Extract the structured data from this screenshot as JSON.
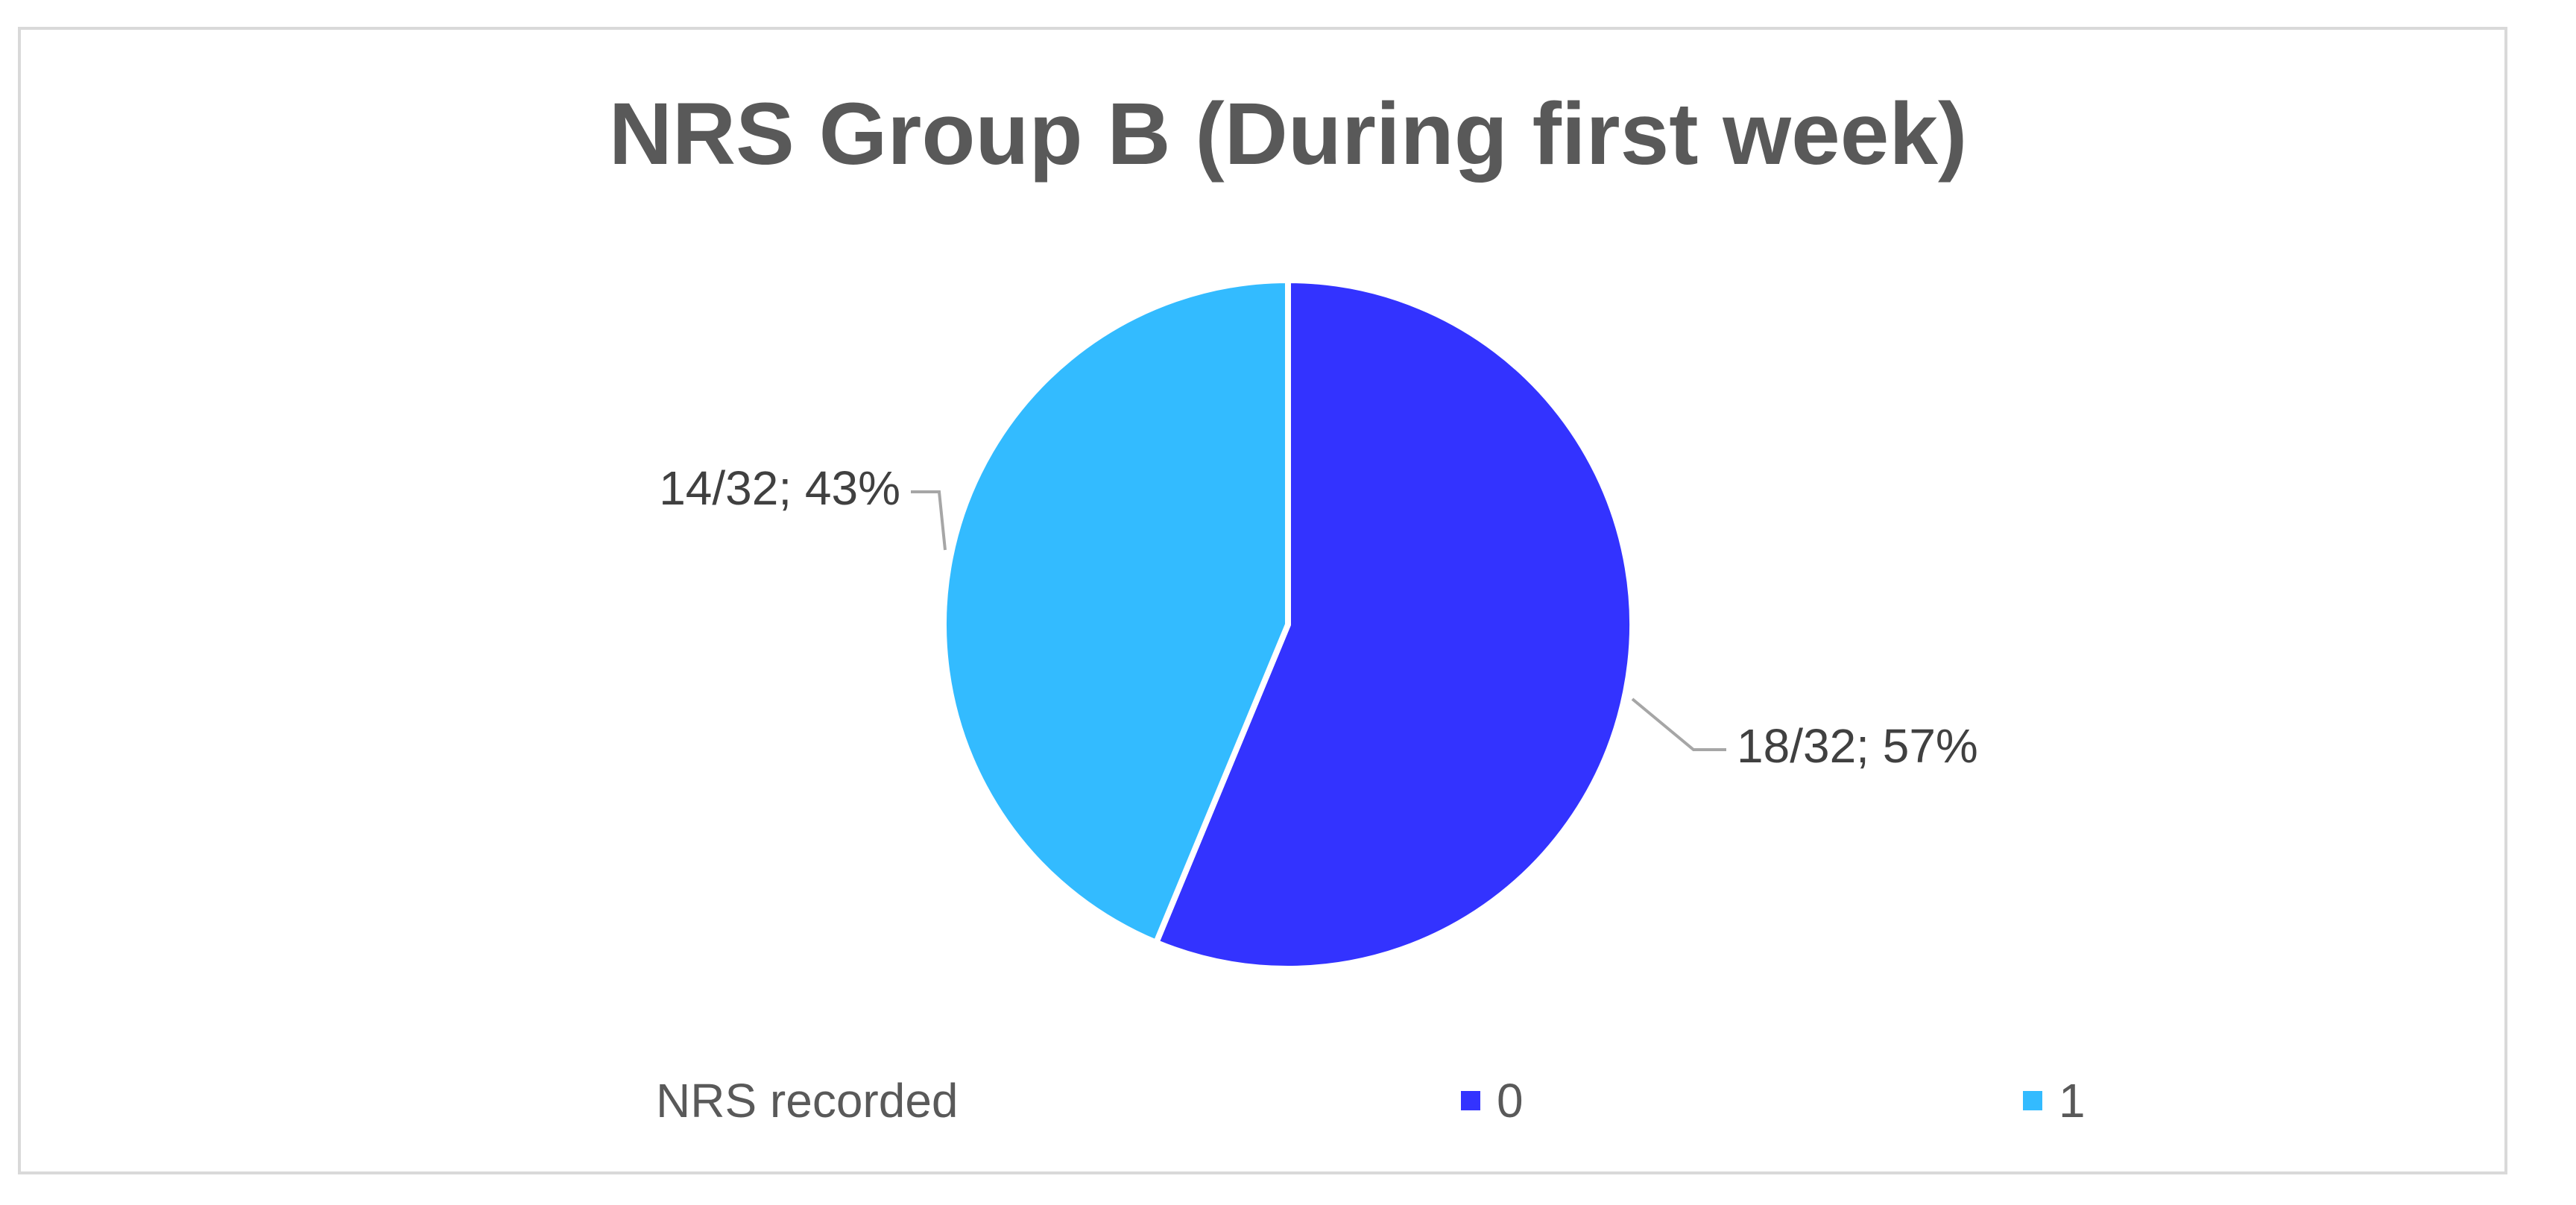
{
  "chart_data": {
    "type": "pie",
    "title": "NRS Group B (During first week)",
    "legend_title": "NRS recorded",
    "legend_position": "bottom",
    "slices": [
      {
        "label": "0",
        "value": 18,
        "total": 32,
        "percent": 57,
        "data_label": "18/32; 57%",
        "color": "#3333ff"
      },
      {
        "label": "1",
        "value": 14,
        "total": 32,
        "percent": 43,
        "data_label": "14/32; 43%",
        "color": "#33bbff"
      }
    ]
  }
}
